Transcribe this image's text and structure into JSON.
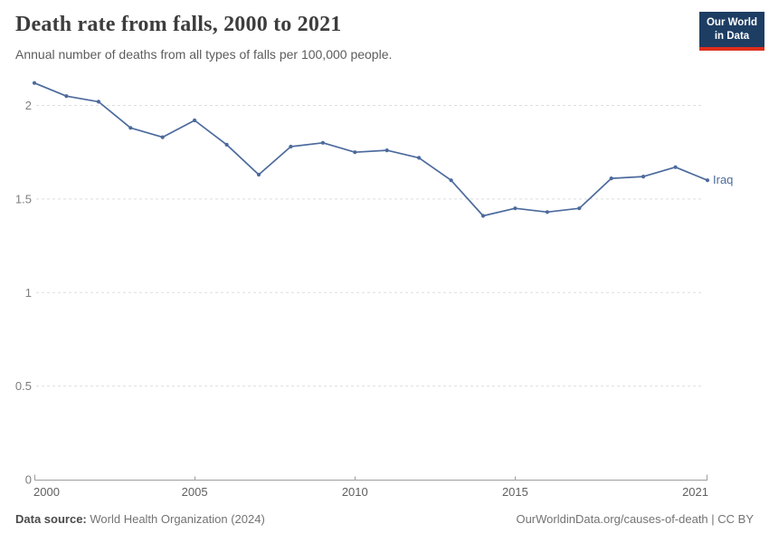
{
  "header": {
    "title": "Death rate from falls, 2000 to 2021",
    "subtitle": "Annual number of deaths from all types of falls per 100,000 people.",
    "logo": {
      "line1": "Our World",
      "line2": "in Data"
    }
  },
  "chart_data": {
    "type": "line",
    "title": "Death rate from falls, 2000 to 2021",
    "ylabel": "Annual deaths from all types of falls per 100,000 people",
    "x": [
      2000,
      2001,
      2002,
      2003,
      2004,
      2005,
      2006,
      2007,
      2008,
      2009,
      2010,
      2011,
      2012,
      2013,
      2014,
      2015,
      2016,
      2017,
      2018,
      2019,
      2020,
      2021
    ],
    "series": [
      {
        "name": "Iraq",
        "color": "#4c6a9c",
        "values": [
          2.12,
          2.05,
          2.02,
          1.88,
          1.83,
          1.92,
          1.79,
          1.63,
          1.78,
          1.8,
          1.75,
          1.76,
          1.72,
          1.6,
          1.41,
          1.45,
          1.43,
          1.45,
          1.61,
          1.62,
          1.67,
          1.6
        ]
      }
    ],
    "xticks": [
      2000,
      2005,
      2010,
      2015,
      2021
    ],
    "yticks": [
      0,
      0.5,
      1,
      1.5,
      2
    ],
    "ylim": [
      0,
      2.2
    ],
    "xlim": [
      2000,
      2021
    ],
    "grid": "horizontal-dashed",
    "legend_position": "end-of-line-label"
  },
  "footer": {
    "source_label": "Data source:",
    "source_value": "World Health Organization (2024)",
    "credit": "OurWorldinData.org/causes-of-death | CC BY"
  },
  "colors": {
    "series_blue": "#4c6a9c",
    "logo_bg": "#1d3d63",
    "logo_accent": "#dc2e1c",
    "grid": "#dedede",
    "axis": "#9e9e9e",
    "ytick_label": "#7e7e7e",
    "xtick_label": "#606060"
  }
}
